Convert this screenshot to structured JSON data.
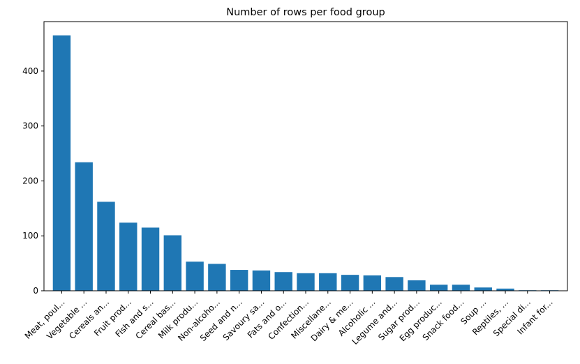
{
  "chart_data": {
    "type": "bar",
    "title": "Number of rows per food group",
    "xlabel": "",
    "ylabel": "",
    "ylim": [
      0,
      490
    ],
    "yticks": [
      0,
      100,
      200,
      300,
      400
    ],
    "bar_color": "#1f77b4",
    "grid": false,
    "categories": [
      "Meat, poul...",
      "Vegetable ...",
      "Cereals an...",
      "Fruit prod...",
      "Fish and s...",
      "Cereal bas...",
      "Milk produ...",
      "Non-alcoho...",
      "Seed and n...",
      "Savoury sa...",
      "Fats and o...",
      "Confection...",
      "Miscellane...",
      "Dairy & me...",
      "Alcoholic ...",
      "Legume and...",
      "Sugar prod...",
      "Egg produc...",
      "Snack food...",
      "Soup ...",
      "Reptiles, ...",
      "Special di...",
      "Infant for..."
    ],
    "values": [
      465,
      234,
      162,
      124,
      115,
      101,
      53,
      49,
      38,
      37,
      34,
      32,
      32,
      29,
      28,
      25,
      19,
      11,
      11,
      6,
      4,
      1,
      1
    ]
  }
}
